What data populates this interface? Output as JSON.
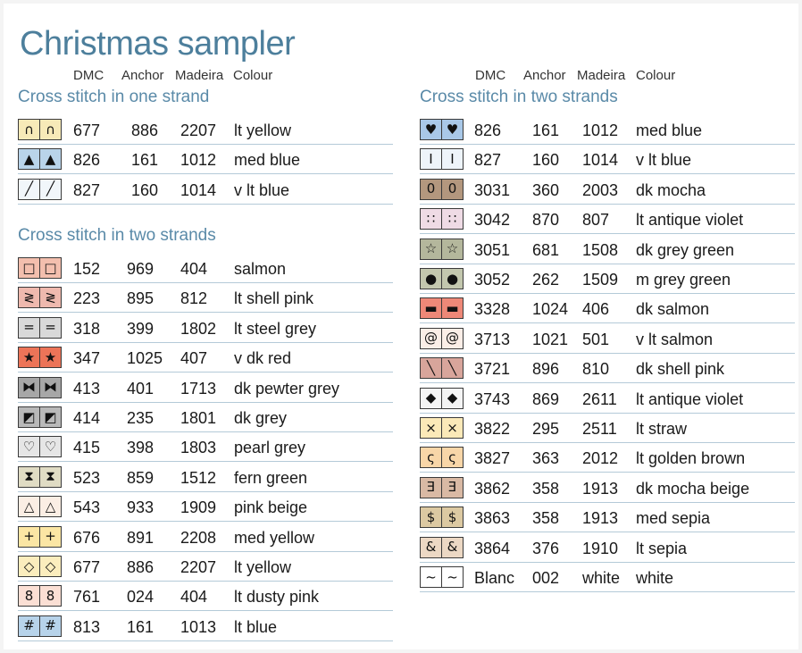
{
  "title": "Christmas sampler",
  "columns": {
    "dmc": "DMC",
    "anchor": "Anchor",
    "madeira": "Madeira",
    "colour": "Colour"
  },
  "sections": [
    {
      "heading": "Cross stitch in one strand",
      "rows": [
        {
          "symbol": "∩",
          "symbol_icon": "arch-icon",
          "bg": "#f7eab8",
          "dmc": "677",
          "anchor": "886",
          "madeira": "2207",
          "colour": "lt yellow"
        },
        {
          "symbol": "▲",
          "symbol_icon": "triangle-icon",
          "bg": "#b9d4ea",
          "dmc": "826",
          "anchor": "161",
          "madeira": "1012",
          "colour": "med blue"
        },
        {
          "symbol": "╱",
          "symbol_icon": "diagonal-line-icon",
          "bg": "#f1f6fa",
          "dmc": "827",
          "anchor": "160",
          "madeira": "1014",
          "colour": "v lt blue"
        }
      ]
    },
    {
      "heading": "Cross stitch in two strands",
      "rows": [
        {
          "symbol": "□",
          "symbol_icon": "square-outline-icon",
          "bg": "#f3bfae",
          "dmc": "152",
          "anchor": "969",
          "madeira": "404",
          "colour": "salmon"
        },
        {
          "symbol": "≷",
          "symbol_icon": "double-angle-icon",
          "bg": "#efb9ae",
          "dmc": "223",
          "anchor": "895",
          "madeira": "812",
          "colour": "lt shell pink"
        },
        {
          "symbol": "=",
          "symbol_icon": "equals-icon",
          "bg": "#d9d9d9",
          "dmc": "318",
          "anchor": "399",
          "madeira": "1802",
          "colour": "lt steel grey"
        },
        {
          "symbol": "★",
          "symbol_icon": "star-icon",
          "bg": "#ec7458",
          "dmc": "347",
          "anchor": "1025",
          "madeira": "407",
          "colour": "v dk red"
        },
        {
          "symbol": "⧓",
          "symbol_icon": "bowtie-icon",
          "bg": "#a7a7a7",
          "dmc": "413",
          "anchor": "401",
          "madeira": "1713",
          "colour": "dk pewter grey"
        },
        {
          "symbol": "◩",
          "symbol_icon": "half-square-icon",
          "bg": "#b9b9b9",
          "dmc": "414",
          "anchor": "235",
          "madeira": "1801",
          "colour": "dk grey"
        },
        {
          "symbol": "♡",
          "symbol_icon": "heart-outline-icon",
          "bg": "#e6e6e6",
          "dmc": "415",
          "anchor": "398",
          "madeira": "1803",
          "colour": "pearl grey"
        },
        {
          "symbol": "⧗",
          "symbol_icon": "hourglass-icon",
          "bg": "#e0dcc4",
          "dmc": "523",
          "anchor": "859",
          "madeira": "1512",
          "colour": "fern green"
        },
        {
          "symbol": "△",
          "symbol_icon": "triangle-outline-icon",
          "bg": "#fbeee4",
          "dmc": "543",
          "anchor": "933",
          "madeira": "1909",
          "colour": "pink beige"
        },
        {
          "symbol": "+",
          "symbol_icon": "plus-icon",
          "bg": "#fbe6a4",
          "dmc": "676",
          "anchor": "891",
          "madeira": "2208",
          "colour": "med yellow"
        },
        {
          "symbol": "◇",
          "symbol_icon": "diamond-outline-icon",
          "bg": "#fbedbd",
          "dmc": "677",
          "anchor": "886",
          "madeira": "2207",
          "colour": "lt yellow"
        },
        {
          "symbol": "8",
          "symbol_icon": "eight-icon",
          "bg": "#fbdfd4",
          "dmc": "761",
          "anchor": "024",
          "madeira": "404",
          "colour": "lt dusty pink"
        },
        {
          "symbol": "#",
          "symbol_icon": "hash-icon",
          "bg": "#b7d3ea",
          "dmc": "813",
          "anchor": "161",
          "madeira": "1013",
          "colour": "lt blue"
        }
      ]
    },
    {
      "heading": "Cross stitch in two strands",
      "rows": [
        {
          "symbol": "♥",
          "symbol_icon": "heart-icon",
          "bg": "#a9c8e8",
          "dmc": "826",
          "anchor": "161",
          "madeira": "1012",
          "colour": "med blue"
        },
        {
          "symbol": "I",
          "symbol_icon": "i-beam-icon",
          "bg": "#eef4fa",
          "dmc": "827",
          "anchor": "160",
          "madeira": "1014",
          "colour": "v lt blue"
        },
        {
          "symbol": "0",
          "symbol_icon": "zero-icon",
          "bg": "#b3977e",
          "dmc": "3031",
          "anchor": "360",
          "madeira": "2003",
          "colour": "dk mocha"
        },
        {
          "symbol": "∷",
          "symbol_icon": "four-squares-icon",
          "bg": "#efdbe5",
          "dmc": "3042",
          "anchor": "870",
          "madeira": "807",
          "colour": "lt antique violet"
        },
        {
          "symbol": "☆",
          "symbol_icon": "star-outline-icon",
          "bg": "#b4b79c",
          "dmc": "3051",
          "anchor": "681",
          "madeira": "1508",
          "colour": "dk grey green"
        },
        {
          "symbol": "●",
          "symbol_icon": "dot-line-icon",
          "bg": "#c3c7ae",
          "dmc": "3052",
          "anchor": "262",
          "madeira": "1509",
          "colour": "m grey green"
        },
        {
          "symbol": "▬",
          "symbol_icon": "bar-icon",
          "bg": "#ee8878",
          "dmc": "3328",
          "anchor": "1024",
          "madeira": "406",
          "colour": "dk salmon"
        },
        {
          "symbol": "@",
          "symbol_icon": "at-icon",
          "bg": "#fbeee7",
          "dmc": "3713",
          "anchor": "1021",
          "madeira": "501",
          "colour": "v lt salmon"
        },
        {
          "symbol": "╲",
          "symbol_icon": "backslash-icon",
          "bg": "#d8a59b",
          "dmc": "3721",
          "anchor": "896",
          "madeira": "810",
          "colour": "dk shell pink"
        },
        {
          "symbol": "◆",
          "symbol_icon": "diamond-icon",
          "bg": "#f4f4f4",
          "dmc": "3743",
          "anchor": "869",
          "madeira": "2611",
          "colour": "lt antique violet"
        },
        {
          "symbol": "×",
          "symbol_icon": "cross-icon",
          "bg": "#fbe9b8",
          "dmc": "3822",
          "anchor": "295",
          "madeira": "2511",
          "colour": "lt straw"
        },
        {
          "symbol": "ς",
          "symbol_icon": "curl-icon",
          "bg": "#f8d6a8",
          "dmc": "3827",
          "anchor": "363",
          "madeira": "2012",
          "colour": "lt golden brown"
        },
        {
          "symbol": "Ǝ",
          "symbol_icon": "reversed-e-icon",
          "bg": "#d9b9a4",
          "dmc": "3862",
          "anchor": "358",
          "madeira": "1913",
          "colour": "dk mocha beige"
        },
        {
          "symbol": "$",
          "symbol_icon": "dollar-icon",
          "bg": "#dcc9a2",
          "dmc": "3863",
          "anchor": "358",
          "madeira": "1913",
          "colour": "med sepia"
        },
        {
          "symbol": "&",
          "symbol_icon": "ampersand-icon",
          "bg": "#ecd8c4",
          "dmc": "3864",
          "anchor": "376",
          "madeira": "1910",
          "colour": "lt sepia"
        },
        {
          "symbol": "~",
          "symbol_icon": "tilde-icon",
          "bg": "#ffffff",
          "dmc": "Blanc",
          "anchor": "002",
          "madeira": "white",
          "colour": "white"
        }
      ]
    }
  ]
}
